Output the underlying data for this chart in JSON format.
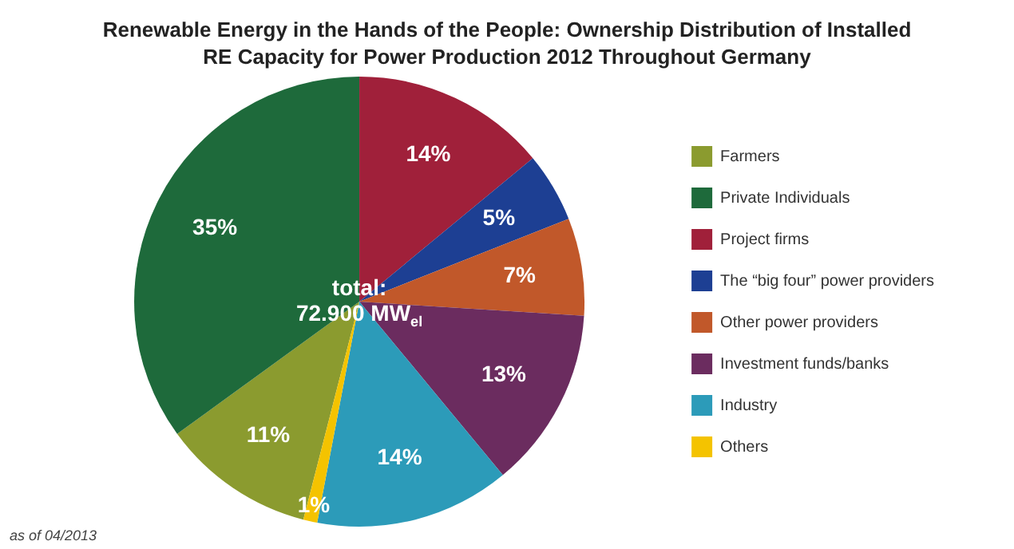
{
  "chart_data": {
    "type": "pie",
    "title": "Renewable Energy in the Hands of the People: Ownership Distribution of Installed RE Capacity for Power Production 2012 Throughout Germany",
    "categories": [
      "Farmers",
      "Private Individuals",
      "Project firms",
      "The “big four” power providers",
      "Other power providers",
      "Investment funds/banks",
      "Industry",
      "Others"
    ],
    "values": [
      11,
      35,
      14,
      5,
      7,
      13,
      14,
      1
    ],
    "colors": [
      "#8b9b2f",
      "#1e6a3b",
      "#a0203a",
      "#1d3f93",
      "#c1582a",
      "#6b2c5f",
      "#2c9bb9",
      "#f4c300"
    ],
    "value_labels": [
      "11%",
      "35%",
      "14%",
      "5%",
      "7%",
      "13%",
      "14%",
      "1%"
    ],
    "legend": "right",
    "annotations": [
      "total:",
      "72.900 MW$_{el}$",
      "as of 04/2013"
    ]
  }
}
